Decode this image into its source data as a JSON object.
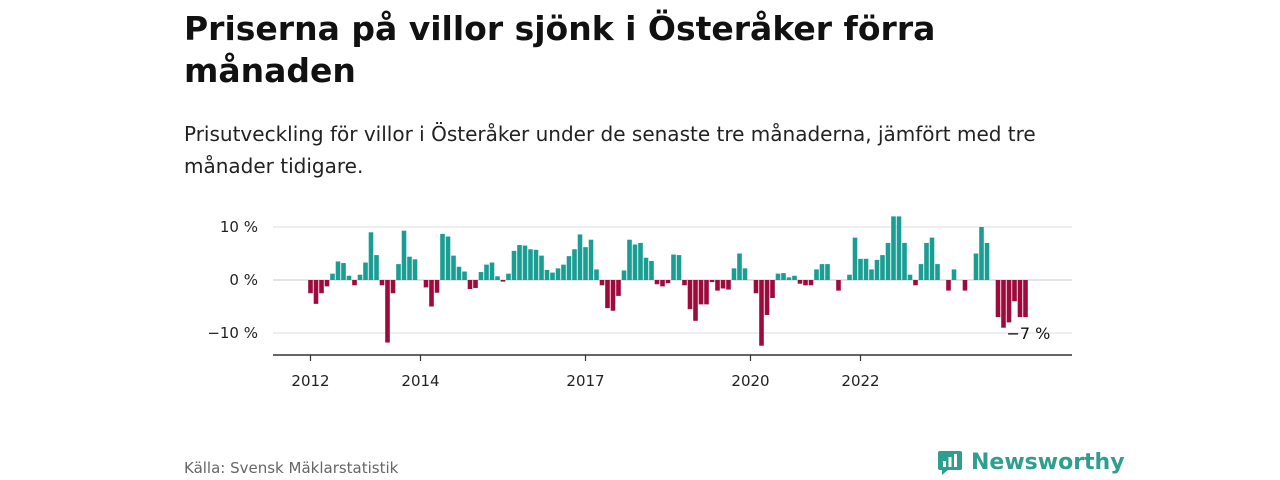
{
  "title": "Priserna på villor sjönk i Österåker förra månaden",
  "subtitle": "Prisutveckling för villor i Österåker under de senaste tre månaderna, jämfört med tre månader tidigare.",
  "source": "Källa: Svensk Mäklarstatistik",
  "brand": {
    "name": "Newsworthy",
    "logo_icon": "newsworthy-logo-icon",
    "color": "#2e9e8f"
  },
  "colors": {
    "positive": "#1a9e93",
    "negative": "#9c0b3c",
    "axis": "#333333",
    "grid": "#dddddd"
  },
  "chart_data": {
    "type": "bar",
    "title": "",
    "xlabel": "",
    "ylabel": "",
    "ylim": [
      -14.5,
      13
    ],
    "y_ticks": [
      {
        "value": 10,
        "label": "10 %"
      },
      {
        "value": 0,
        "label": "0 %"
      },
      {
        "value": -10,
        "label": "−10 %"
      }
    ],
    "x_ticks": [
      {
        "index": 0,
        "label": "2012"
      },
      {
        "index": 20,
        "label": "2014"
      },
      {
        "index": 50,
        "label": "2017"
      },
      {
        "index": 80,
        "label": "2020"
      },
      {
        "index": 100,
        "label": "2022"
      }
    ],
    "grid": "horizontal",
    "start_period": "2012-01",
    "frequency": "monthly",
    "end_label": "−7 %",
    "series": [
      {
        "values": [
          -2.5,
          -4.5,
          -2.5,
          -1.2,
          1.2,
          3.5,
          3.2,
          0.8,
          -1.0,
          1.0,
          3.3,
          9.0,
          4.7,
          -1.0,
          -11.8,
          -2.5,
          3.0,
          9.3,
          4.4,
          3.9,
          0.0,
          -1.4,
          -5.0,
          -2.4,
          8.7,
          8.2,
          4.6,
          2.5,
          1.6,
          -1.7,
          -1.5,
          1.5,
          2.9,
          3.3,
          0.7,
          -0.3,
          1.2,
          5.5,
          6.6,
          6.5,
          5.8,
          5.7,
          4.6,
          1.9,
          1.4,
          2.2,
          2.9,
          4.5,
          5.8,
          8.6,
          6.2,
          7.6,
          2.0,
          -1.0,
          -5.3,
          -5.8,
          -3.0,
          1.8,
          7.6,
          6.7,
          7.0,
          4.2,
          3.6,
          -0.8,
          -1.2,
          -0.6,
          4.8,
          4.7,
          -1.0,
          -5.5,
          -7.7,
          -4.6,
          -4.6,
          -0.4,
          -2.0,
          -1.6,
          -1.8,
          2.2,
          5.0,
          2.2,
          0.0,
          -2.5,
          -12.4,
          -6.6,
          -3.4,
          1.2,
          1.3,
          0.5,
          0.8,
          -0.7,
          -1.0,
          -1.0,
          2.0,
          3.0,
          3.0,
          0.0,
          -2.0,
          0.0,
          1.0,
          8.0,
          4.0,
          4.0,
          2.0,
          3.8,
          4.7,
          7.0,
          12.0,
          12.0,
          7.0,
          1.0,
          -1.0,
          3.0,
          7.0,
          8.0,
          3.0,
          0.0,
          -2.0,
          2.0,
          0.0,
          -2.0,
          0.0,
          5.0,
          10.0,
          7.0,
          0.0,
          -7.0,
          -9.0,
          -8.0,
          -4.0,
          -7.0,
          -7.0
        ]
      }
    ]
  }
}
